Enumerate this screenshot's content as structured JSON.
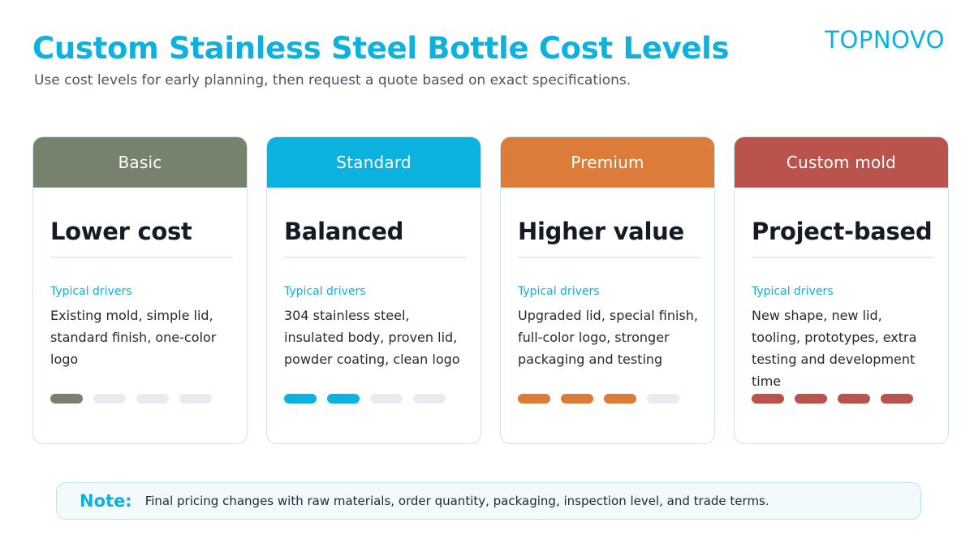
{
  "header": {
    "title": "Custom Stainless Steel Bottle Cost Levels",
    "subtitle": "Use cost levels for early planning, then request a quote based on exact specifications.",
    "brand": "TOPNOVO"
  },
  "cards": [
    {
      "tier": "Basic",
      "color": "#77826d",
      "title": "Lower cost",
      "drivers_label": "Typical drivers",
      "drivers": "Existing mold, simple lid, standard finish, one-color logo",
      "level": 1,
      "level_max": 4
    },
    {
      "tier": "Standard",
      "color": "#0bb2df",
      "title": "Balanced",
      "drivers_label": "Typical drivers",
      "drivers": "304 stainless steel, insulated body, proven lid, powder coating, clean logo",
      "level": 2,
      "level_max": 4
    },
    {
      "tier": "Premium",
      "color": "#dc7c38",
      "title": "Higher value",
      "drivers_label": "Typical drivers",
      "drivers": "Upgraded lid, special finish, full-color logo, stronger packaging and testing",
      "level": 3,
      "level_max": 4
    },
    {
      "tier": "Custom mold",
      "color": "#b9534c",
      "title": "Project-based",
      "drivers_label": "Typical drivers",
      "drivers": "New shape, new lid, tooling, prototypes, extra testing and development time",
      "level": 4,
      "level_max": 4
    }
  ],
  "note": {
    "label": "Note:",
    "text": "Final pricing changes with raw materials, order quantity, packaging, inspection level, and trade terms."
  }
}
